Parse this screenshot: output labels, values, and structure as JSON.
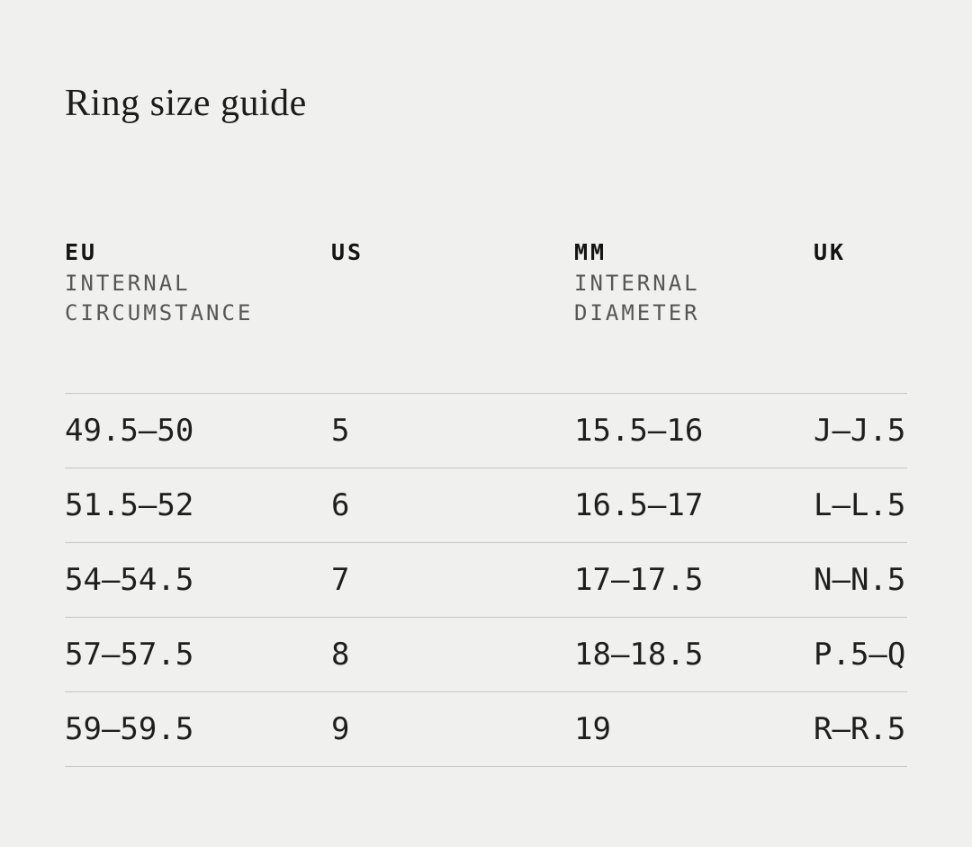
{
  "title": "Ring size guide",
  "table": {
    "headers": [
      {
        "label": "EU",
        "sub1": "INTERNAL",
        "sub2": "CIRCUMSTANCE"
      },
      {
        "label": "US",
        "sub1": "",
        "sub2": ""
      },
      {
        "label": "MM",
        "sub1": "INTERNAL",
        "sub2": "DIAMETER"
      },
      {
        "label": "UK",
        "sub1": "",
        "sub2": ""
      }
    ],
    "rows": [
      {
        "eu": "49.5—50",
        "us": "5",
        "mm": "15.5—16",
        "uk": "J—J.5"
      },
      {
        "eu": "51.5—52",
        "us": "6",
        "mm": "16.5—17",
        "uk": "L—L.5"
      },
      {
        "eu": "54—54.5",
        "us": "7",
        "mm": "17—17.5",
        "uk": "N—N.5"
      },
      {
        "eu": "57—57.5",
        "us": "8",
        "mm": "18—18.5",
        "uk": "P.5—Q"
      },
      {
        "eu": "59—59.5",
        "us": "9",
        "mm": "19",
        "uk": "R—R.5"
      }
    ]
  },
  "colors": {
    "background": "#f0f0ee",
    "title_text": "#1c1c1c",
    "cell_text": "#1e1e1e",
    "header_text": "#141414",
    "header_sub_text": "#565656",
    "divider": "#c6c6c4"
  }
}
